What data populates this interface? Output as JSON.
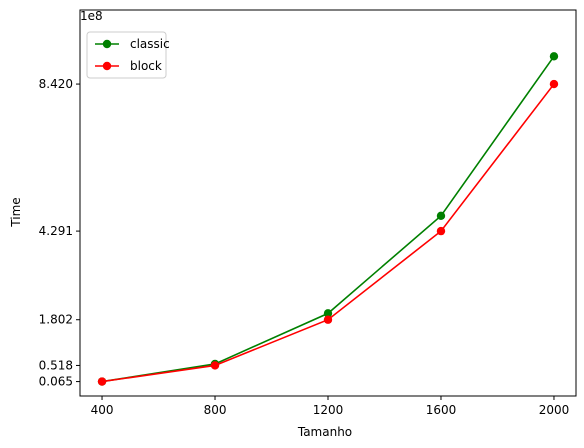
{
  "chart_data": {
    "type": "line",
    "xlabel": "Tamanho",
    "ylabel": "Time",
    "y_offset_label": "1e8",
    "x": [
      400,
      800,
      1200,
      1600,
      2000
    ],
    "x_tick_labels": [
      "400",
      "800",
      "1200",
      "1600",
      "2000"
    ],
    "y_ticks": [
      0.065,
      0.518,
      1.802,
      4.291,
      8.42
    ],
    "y_tick_labels": [
      "0.065",
      "0.518",
      "1.802",
      "4.291",
      "8.420"
    ],
    "xlim": [
      322,
      2078
    ],
    "ylim": [
      -0.34,
      10.5
    ],
    "series": [
      {
        "name": "classic",
        "color": "#008000",
        "values": [
          0.065,
          0.56,
          1.98,
          4.72,
          9.2
        ]
      },
      {
        "name": "block",
        "color": "#ff0000",
        "values": [
          0.065,
          0.518,
          1.802,
          4.291,
          8.42
        ]
      }
    ],
    "legend_position": "top-left",
    "grid": false
  }
}
